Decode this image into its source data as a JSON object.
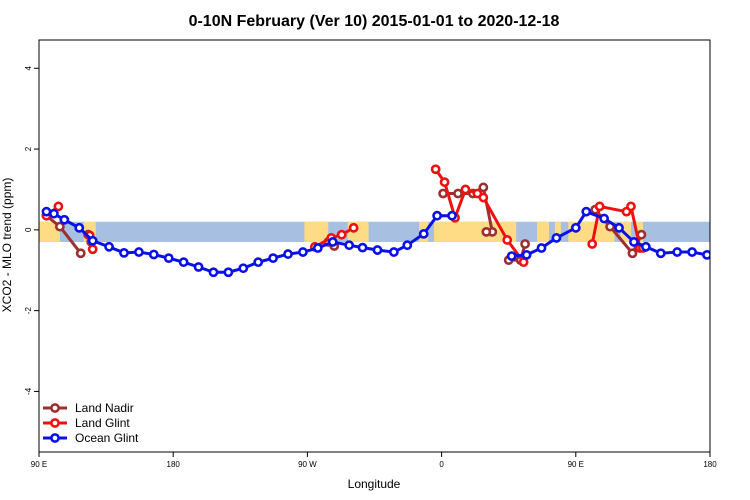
{
  "chart_data": {
    "type": "line",
    "title": "0-10N February (Ver 10)   2015-01-01 to 2020-12-18",
    "xlabel": "Longitude",
    "ylabel": "XCO2 - MLO trend (ppm)",
    "xlim": [
      90,
      540
    ],
    "ylim": [
      -5.5,
      4.7
    ],
    "x_ticks": [
      {
        "value": 90,
        "label": "90 E"
      },
      {
        "value": 180,
        "label": "180"
      },
      {
        "value": 270,
        "label": "90 W"
      },
      {
        "value": 360,
        "label": "0"
      },
      {
        "value": 450,
        "label": "90 E"
      },
      {
        "value": 540,
        "label": "180"
      }
    ],
    "y_ticks": [
      {
        "value": -4,
        "label": "-4"
      },
      {
        "value": -2,
        "label": "-2"
      },
      {
        "value": 0,
        "label": "0"
      },
      {
        "value": 2,
        "label": "2"
      },
      {
        "value": 4,
        "label": "4"
      }
    ],
    "grid": false,
    "legend_position": "bottom-left",
    "band": {
      "ymin": -0.3,
      "ymax": 0.2,
      "color": "#a7bfe0"
    },
    "land_color": "#fedc85",
    "land_regions": [
      {
        "xmin": 90,
        "xmax": 104
      },
      {
        "xmin": 120,
        "xmax": 128
      },
      {
        "xmin": 268,
        "xmax": 284
      },
      {
        "xmin": 297,
        "xmax": 311
      },
      {
        "xmin": 345,
        "xmax": 351
      },
      {
        "xmin": 355,
        "xmax": 410
      },
      {
        "xmin": 424,
        "xmax": 432
      },
      {
        "xmin": 436,
        "xmax": 440
      },
      {
        "xmin": 445,
        "xmax": 476
      },
      {
        "xmin": 480,
        "xmax": 487
      },
      {
        "xmin": 490,
        "xmax": 495
      }
    ],
    "series": [
      {
        "name": "Land Nadir",
        "color": "#9c2f2f",
        "segments": [
          {
            "x": [
              95,
              104,
              118
            ],
            "y": [
              0.35,
              0.08,
              -0.58
            ]
          },
          {
            "x": [
              123,
              125,
              123
            ],
            "y": [
              -0.12,
              -0.3,
              -0.12
            ]
          },
          {
            "x": [
              284,
              288
            ],
            "y": [
              -0.3,
              -0.4
            ]
          },
          {
            "x": [
              361,
              371,
              381,
              388,
              394,
              390
            ],
            "y": [
              0.9,
              0.9,
              0.9,
              1.05,
              -0.05,
              -0.05
            ]
          },
          {
            "x": [
              405,
              413,
              416
            ],
            "y": [
              -0.75,
              -0.75,
              -0.35
            ]
          },
          {
            "x": [
              463,
              473,
              488,
              494
            ],
            "y": [
              0.5,
              0.08,
              -0.58,
              -0.12
            ]
          }
        ]
      },
      {
        "name": "Land Glint",
        "color": "#ee1111",
        "segments": [
          {
            "x": [
              95,
              103
            ],
            "y": [
              0.35,
              0.58
            ]
          },
          {
            "x": [
              124,
              126,
              124
            ],
            "y": [
              -0.14,
              -0.48,
              -0.14
            ]
          },
          {
            "x": [
              275,
              286,
              293,
              301
            ],
            "y": [
              -0.42,
              -0.2,
              -0.12,
              0.05
            ]
          },
          {
            "x": [
              356,
              362,
              369,
              376,
              384,
              388,
              404,
              415
            ],
            "y": [
              1.5,
              1.18,
              0.3,
              1.0,
              0.9,
              0.8,
              -0.25,
              -0.8
            ]
          },
          {
            "x": [
              461,
              466,
              484,
              487,
              493,
              495
            ],
            "y": [
              -0.35,
              0.58,
              0.45,
              0.58,
              -0.45,
              -0.45
            ]
          }
        ]
      },
      {
        "name": "Ocean Glint",
        "color": "#0a10e8",
        "segments": [
          {
            "x": [
              95,
              100,
              107,
              117,
              126,
              137,
              147,
              157,
              167,
              177,
              187,
              197,
              207,
              217,
              227,
              237,
              247,
              257,
              267,
              277,
              287,
              298,
              307,
              317,
              328,
              337,
              348,
              357,
              367
            ],
            "y": [
              0.45,
              0.4,
              0.25,
              0.05,
              -0.27,
              -0.42,
              -0.57,
              -0.55,
              -0.61,
              -0.7,
              -0.8,
              -0.92,
              -1.05,
              -1.05,
              -0.95,
              -0.8,
              -0.7,
              -0.6,
              -0.55,
              -0.45,
              -0.3,
              -0.38,
              -0.44,
              -0.5,
              -0.55,
              -0.38,
              -0.1,
              0.35,
              0.35
            ]
          },
          {
            "x": [
              407,
              417,
              427,
              437,
              450,
              457,
              469,
              479,
              489,
              497,
              507,
              518,
              528,
              538,
              546
            ],
            "y": [
              -0.65,
              -0.62,
              -0.45,
              -0.2,
              0.05,
              0.45,
              0.28,
              0.05,
              -0.3,
              -0.42,
              -0.58,
              -0.55,
              -0.55,
              -0.62,
              -0.68
            ]
          }
        ]
      }
    ]
  }
}
